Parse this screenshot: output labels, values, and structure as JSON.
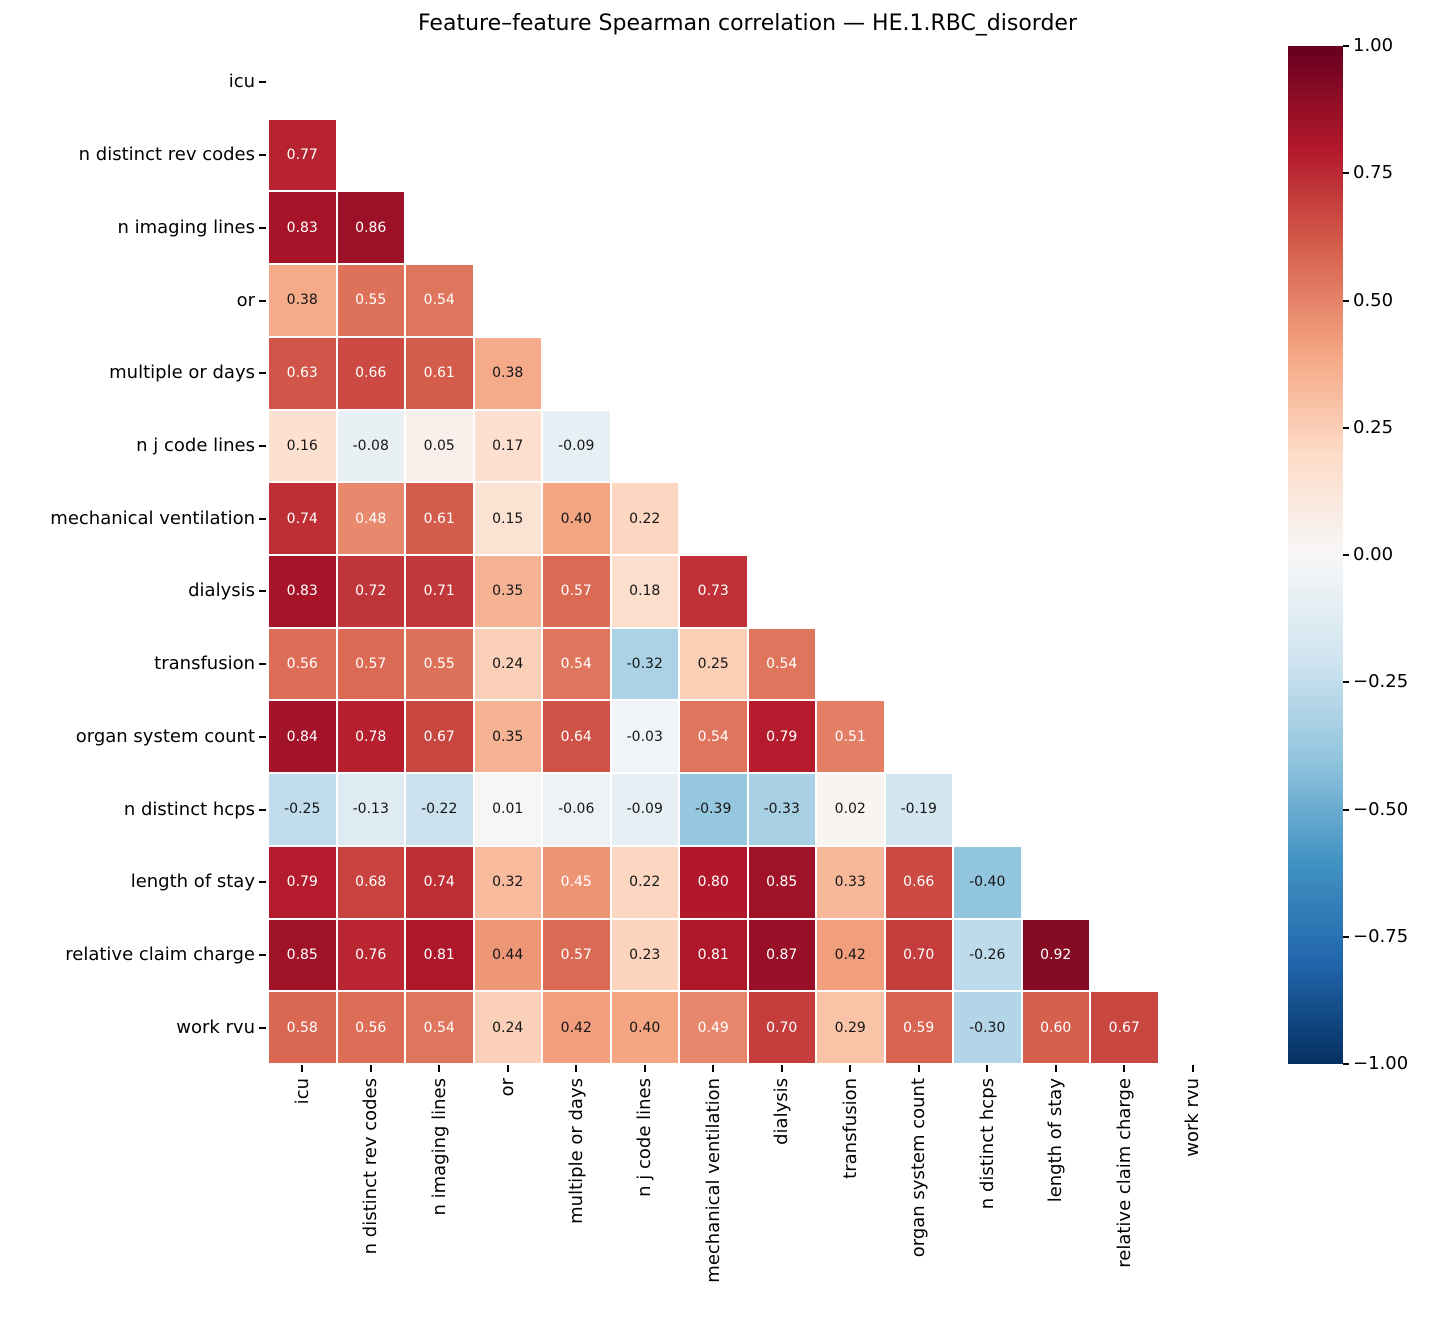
{
  "title": "Feature–feature Spearman correlation — HE.1.RBC_disorder",
  "chart_data": {
    "type": "heatmap",
    "title": "Feature–feature Spearman correlation — HE.1.RBC_disorder",
    "features": [
      "icu",
      "n distinct rev codes",
      "n imaging lines",
      "or",
      "multiple or days",
      "n j code lines",
      "mechanical ventilation",
      "dialysis",
      "transfusion",
      "organ system count",
      "n distinct hcps",
      "length of stay",
      "relative claim charge",
      "work rvu"
    ],
    "mask": "only lower triangle shown (diagonal and upper triangle blank)",
    "matrix_lower_triangle": [
      [],
      [
        0.77
      ],
      [
        0.83,
        0.86
      ],
      [
        0.38,
        0.55,
        0.54
      ],
      [
        0.63,
        0.66,
        0.61,
        0.38
      ],
      [
        0.16,
        -0.08,
        0.05,
        0.17,
        -0.09
      ],
      [
        0.74,
        0.48,
        0.61,
        0.15,
        0.4,
        0.22
      ],
      [
        0.83,
        0.72,
        0.71,
        0.35,
        0.57,
        0.18,
        0.73
      ],
      [
        0.56,
        0.57,
        0.55,
        0.24,
        0.54,
        -0.32,
        0.25,
        0.54
      ],
      [
        0.84,
        0.78,
        0.67,
        0.35,
        0.64,
        -0.03,
        0.54,
        0.79,
        0.51
      ],
      [
        -0.25,
        -0.13,
        -0.22,
        0.01,
        -0.06,
        -0.09,
        -0.39,
        -0.33,
        0.02,
        -0.19
      ],
      [
        0.79,
        0.68,
        0.74,
        0.32,
        0.45,
        0.22,
        0.8,
        0.85,
        0.33,
        0.66,
        -0.4
      ],
      [
        0.85,
        0.76,
        0.81,
        0.44,
        0.57,
        0.23,
        0.81,
        0.87,
        0.42,
        0.7,
        -0.26,
        0.92
      ],
      [
        0.58,
        0.56,
        0.54,
        0.24,
        0.42,
        0.4,
        0.49,
        0.7,
        0.29,
        0.59,
        -0.3,
        0.6,
        0.67
      ]
    ],
    "colormap": "RdBu_r",
    "vmin": -1,
    "vmax": 1,
    "annotation_decimals": 2,
    "colorbar_position": "right",
    "colorbar_ticks": [
      "1.00",
      "0.75",
      "0.50",
      "0.25",
      "0.00",
      "−0.25",
      "−0.50",
      "−0.75",
      "−1.00"
    ],
    "grid": "thin white lines between cells"
  },
  "colors": {
    "background": "#ffffff",
    "text": "#000000",
    "annotation_light": "#ffffff",
    "annotation_dark": "#151515",
    "grid_line": "#ffffff"
  }
}
